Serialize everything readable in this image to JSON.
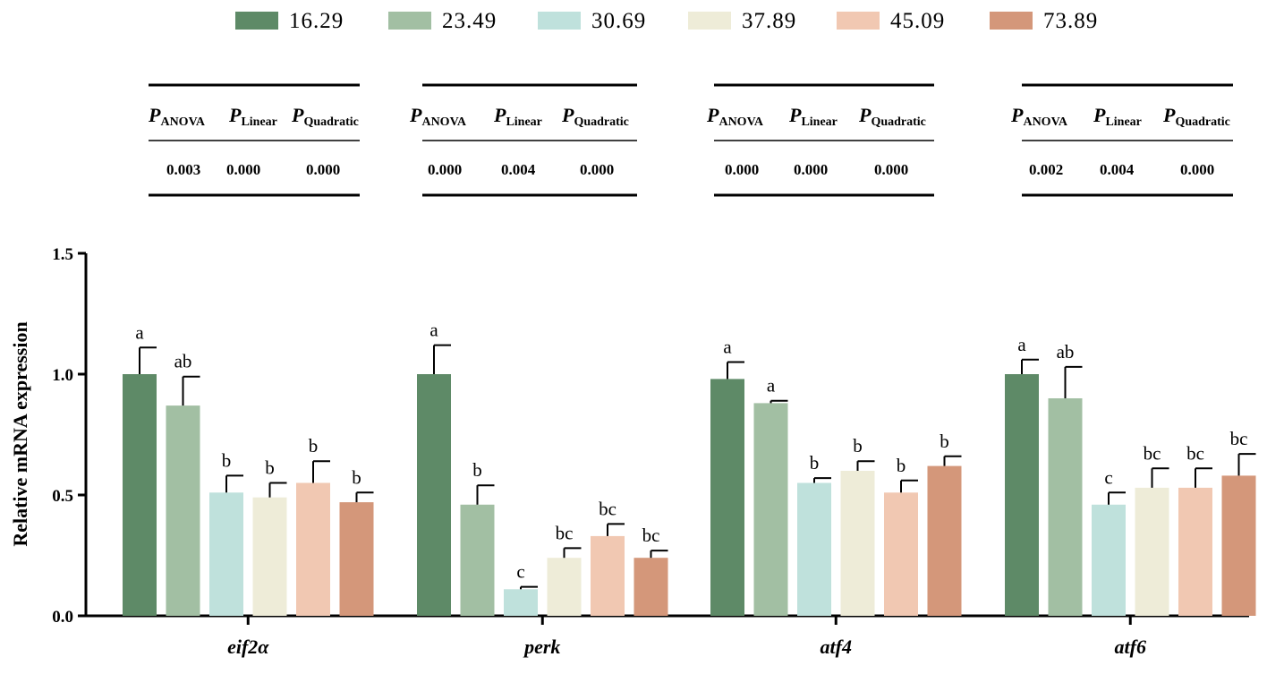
{
  "legend": {
    "items": [
      {
        "label": "16.29",
        "color": "#5e8a67"
      },
      {
        "label": "23.49",
        "color": "#a2bfa3"
      },
      {
        "label": "30.69",
        "color": "#bfe1dc"
      },
      {
        "label": "37.89",
        "color": "#eeecd8"
      },
      {
        "label": "45.09",
        "color": "#f1c8b2"
      },
      {
        "label": "73.89",
        "color": "#d4977a"
      }
    ]
  },
  "stats_tables": {
    "header_symbol": "P",
    "header_subs": [
      "ANOVA",
      "Linear",
      "Quadratic"
    ],
    "tables": [
      {
        "gene": "eif2α",
        "values": [
          "0.003",
          "0.000",
          "0.000"
        ]
      },
      {
        "gene": "perk",
        "values": [
          "0.000",
          "0.004",
          "0.000"
        ]
      },
      {
        "gene": "atf4",
        "values": [
          "0.000",
          "0.000",
          "0.000"
        ]
      },
      {
        "gene": "atf6",
        "values": [
          "0.002",
          "0.004",
          "0.000"
        ]
      }
    ]
  },
  "chart_data": {
    "type": "bar",
    "title": "",
    "xlabel": "",
    "ylabel": "Relative mRNA expression",
    "ylim": [
      0,
      1.5
    ],
    "yticks": [
      "0.0",
      "0.5",
      "1.0",
      "1.5"
    ],
    "ytick_values": [
      0,
      0.5,
      1.0,
      1.5
    ],
    "categories": [
      "eif2α",
      "perk",
      "atf4",
      "atf6"
    ],
    "series": [
      {
        "name": "16.29",
        "values": [
          1.0,
          1.0,
          0.98,
          1.0
        ],
        "errors": [
          0.11,
          0.12,
          0.07,
          0.06
        ],
        "letters": [
          "a",
          "a",
          "a",
          "a"
        ]
      },
      {
        "name": "23.49",
        "values": [
          0.87,
          0.46,
          0.88,
          0.9
        ],
        "errors": [
          0.12,
          0.08,
          0.01,
          0.13
        ],
        "letters": [
          "ab",
          "b",
          "a",
          "ab"
        ]
      },
      {
        "name": "30.69",
        "values": [
          0.51,
          0.11,
          0.55,
          0.46
        ],
        "errors": [
          0.07,
          0.01,
          0.02,
          0.05
        ],
        "letters": [
          "b",
          "c",
          "b",
          "c"
        ]
      },
      {
        "name": "37.89",
        "values": [
          0.49,
          0.24,
          0.6,
          0.53
        ],
        "errors": [
          0.06,
          0.04,
          0.04,
          0.08
        ],
        "letters": [
          "b",
          "bc",
          "b",
          "bc"
        ]
      },
      {
        "name": "45.09",
        "values": [
          0.55,
          0.33,
          0.51,
          0.53
        ],
        "errors": [
          0.09,
          0.05,
          0.05,
          0.08
        ],
        "letters": [
          "b",
          "bc",
          "b",
          "bc"
        ]
      },
      {
        "name": "73.89",
        "values": [
          0.47,
          0.24,
          0.62,
          0.58
        ],
        "errors": [
          0.04,
          0.03,
          0.04,
          0.09
        ],
        "letters": [
          "b",
          "bc",
          "b",
          "bc"
        ]
      }
    ]
  }
}
